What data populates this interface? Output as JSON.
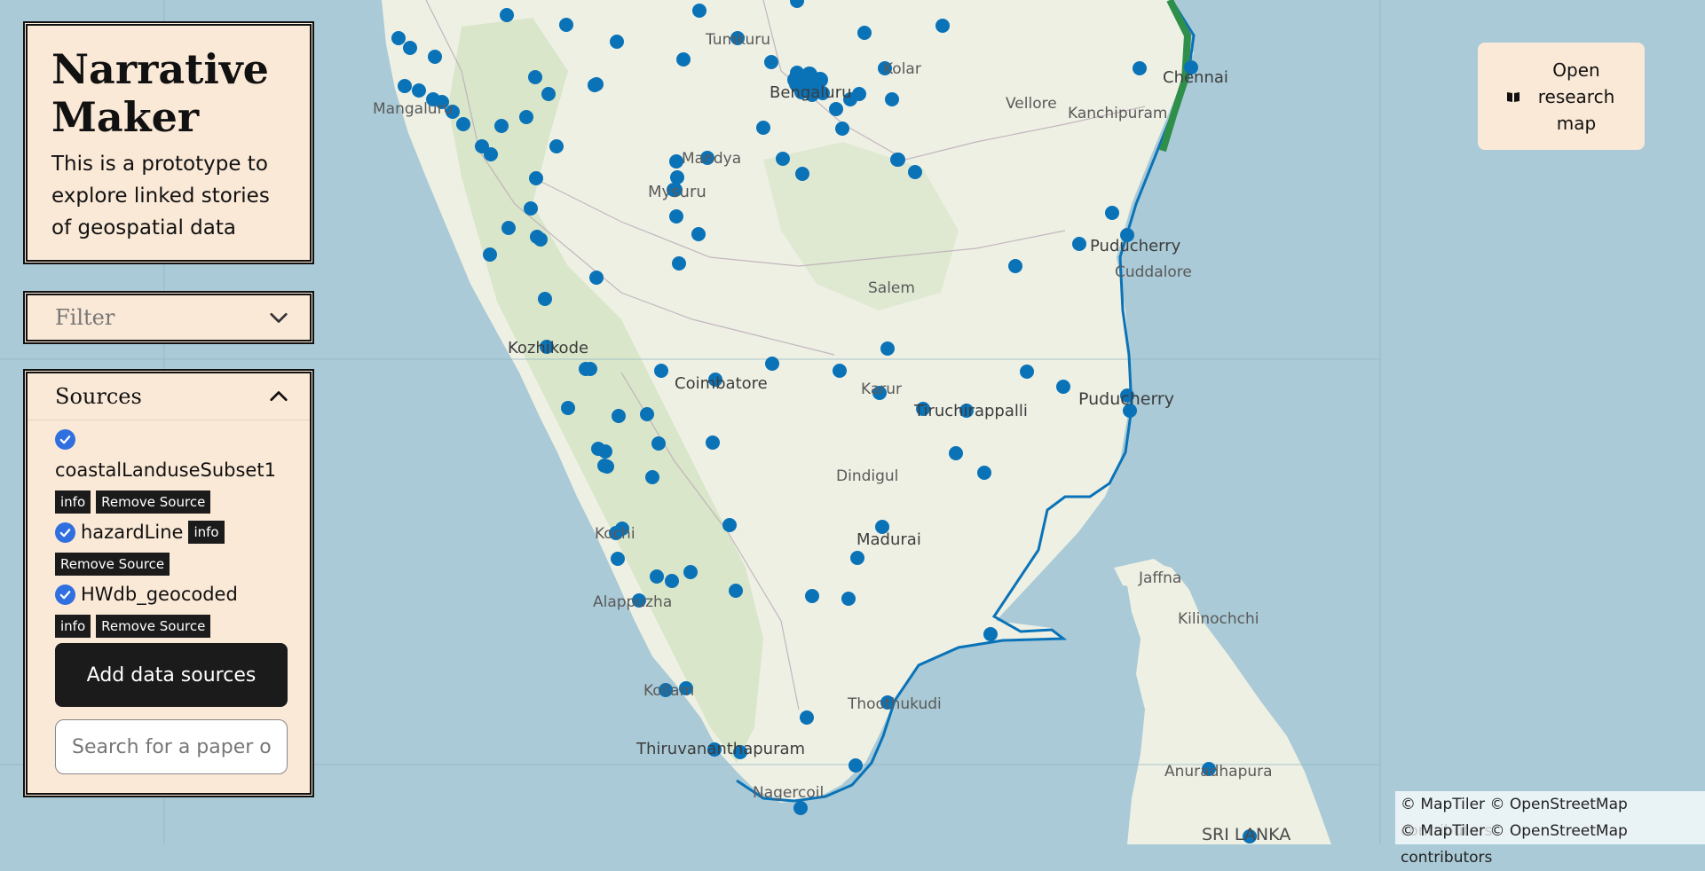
{
  "app": {
    "title": "Narrative Maker",
    "description": "This is a prototype to explore linked stories of geospatial data"
  },
  "filter": {
    "label": "Filter"
  },
  "sources": {
    "label": "Sources",
    "items": [
      {
        "name": "coastalLanduseSubset1",
        "checked": true,
        "info_label": "info",
        "remove_label": "Remove Source"
      },
      {
        "name": "hazardLine",
        "checked": true,
        "info_label": "info",
        "remove_label": "Remove Source"
      },
      {
        "name": "HWdb_geocoded",
        "checked": true,
        "info_label": "info",
        "remove_label": "Remove Source"
      }
    ],
    "add_label": "Add data sources",
    "search_placeholder": "Search for a paper or dataset"
  },
  "research_map": {
    "label": "Open research map",
    "icon": "book-icon"
  },
  "attribution": [
    "© MapTiler © OpenStreetMap contributors",
    "© MapTiler © OpenStreetMap contributors"
  ],
  "map": {
    "labels": [
      "Tumkuru",
      "Kolar",
      "Chennai",
      "Vellore",
      "Kanchipuram",
      "Mangaluru",
      "Bengaluru",
      "Mandya",
      "Mysuru",
      "Puducherry",
      "Cuddalore",
      "Salem",
      "Kozhikode",
      "Coimbatore",
      "Karur",
      "Tiruchirappalli",
      "Puducherry",
      "Dindigul",
      "Kochi",
      "Madurai",
      "Alappuzha",
      "Jaffna",
      "Kilinochchi",
      "Kollam",
      "Thoothukudi",
      "Thiruvananthapuram",
      "Anuradhapura",
      "Nagercoil",
      "SRI LANKA"
    ],
    "colors": {
      "water": "#a9cad6",
      "land": "#eef0e4",
      "forest": "#cfe0bf",
      "points": "#0a73b8"
    }
  }
}
